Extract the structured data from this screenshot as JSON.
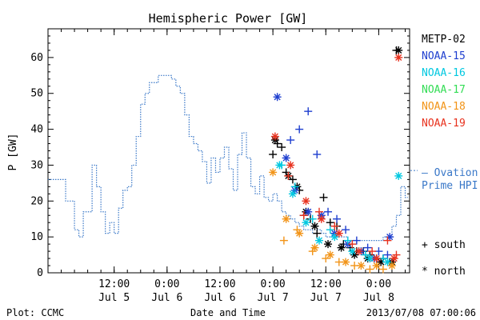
{
  "chart_data": {
    "type": "scatter",
    "title": "Hemispheric Power [GW]",
    "ylabel": "P [GW]",
    "xlabel": "Date and Time",
    "ylim": [
      0,
      68
    ],
    "yticks": [
      0,
      10,
      20,
      30,
      40,
      50,
      60
    ],
    "xlim": [
      "2013-07-04T21:00",
      "2013-07-08T07:00"
    ],
    "xticks": [
      {
        "time": "2013-07-05T12:00",
        "label": "12:00",
        "date": "Jul 5"
      },
      {
        "time": "2013-07-06T00:00",
        "label": "0:00",
        "date": "Jul 6"
      },
      {
        "time": "2013-07-06T12:00",
        "label": "12:00",
        "date": "Jul 6"
      },
      {
        "time": "2013-07-07T00:00",
        "label": "0:00",
        "date": "Jul 7"
      },
      {
        "time": "2013-07-07T12:00",
        "label": "12:00",
        "date": "Jul 7"
      },
      {
        "time": "2013-07-08T00:00",
        "label": "0:00",
        "date": "Jul 8"
      }
    ],
    "ovation": {
      "name": "— Ovation Prime HPI",
      "color": "#3a78c8",
      "x": [
        "2013-07-04T21:00",
        "2013-07-05T01:00",
        "2013-07-05T03:00",
        "2013-07-05T04:00",
        "2013-07-05T05:00",
        "2013-07-05T07:00",
        "2013-07-05T08:00",
        "2013-07-05T09:00",
        "2013-07-05T10:00",
        "2013-07-05T11:00",
        "2013-07-05T12:00",
        "2013-07-05T13:00",
        "2013-07-05T14:00",
        "2013-07-05T15:00",
        "2013-07-05T16:00",
        "2013-07-05T17:00",
        "2013-07-05T18:00",
        "2013-07-05T19:00",
        "2013-07-05T20:00",
        "2013-07-05T21:00",
        "2013-07-05T22:00",
        "2013-07-05T23:00",
        "2013-07-06T00:00",
        "2013-07-06T01:00",
        "2013-07-06T02:00",
        "2013-07-06T03:00",
        "2013-07-06T04:00",
        "2013-07-06T05:00",
        "2013-07-06T06:00",
        "2013-07-06T07:00",
        "2013-07-06T08:00",
        "2013-07-06T09:00",
        "2013-07-06T10:00",
        "2013-07-06T11:00",
        "2013-07-06T12:00",
        "2013-07-06T13:00",
        "2013-07-06T14:00",
        "2013-07-06T15:00",
        "2013-07-06T16:00",
        "2013-07-06T17:00",
        "2013-07-06T18:00",
        "2013-07-06T19:00",
        "2013-07-06T20:00",
        "2013-07-06T21:00",
        "2013-07-06T22:00",
        "2013-07-06T23:00",
        "2013-07-07T00:00",
        "2013-07-07T01:00",
        "2013-07-07T02:00",
        "2013-07-07T03:00",
        "2013-07-07T04:00",
        "2013-07-07T05:00",
        "2013-07-07T06:00",
        "2013-07-07T07:00",
        "2013-07-07T08:00",
        "2013-07-07T09:00",
        "2013-07-07T10:00",
        "2013-07-07T11:00",
        "2013-07-07T12:00",
        "2013-07-07T13:00",
        "2013-07-07T14:00",
        "2013-07-07T15:00",
        "2013-07-07T16:00",
        "2013-07-07T17:00",
        "2013-07-07T18:00",
        "2013-07-07T19:00",
        "2013-07-07T20:00",
        "2013-07-07T21:00",
        "2013-07-07T22:00",
        "2013-07-07T23:00",
        "2013-07-08T00:00",
        "2013-07-08T01:00",
        "2013-07-08T02:00",
        "2013-07-08T03:00",
        "2013-07-08T04:00",
        "2013-07-08T05:00",
        "2013-07-08T06:00"
      ],
      "values": [
        26,
        20,
        12,
        10,
        17,
        30,
        24,
        17,
        11,
        14,
        11,
        18,
        23,
        24,
        30,
        38,
        47,
        50,
        53,
        53,
        55,
        55,
        55,
        54,
        52,
        50,
        44,
        38,
        36,
        34,
        31,
        25,
        32,
        28,
        32,
        35,
        29,
        23,
        33,
        39,
        32,
        24,
        22,
        27,
        21,
        20,
        22,
        20,
        17,
        16,
        15,
        14,
        13,
        12,
        12,
        11,
        12,
        11,
        10,
        10,
        10,
        10,
        10,
        9,
        8,
        9,
        9,
        9,
        9,
        9,
        9,
        10,
        10,
        13,
        16,
        24,
        21
      ]
    },
    "series": [
      {
        "name": "METP-02",
        "color": "#000000",
        "south": {
          "x": [
            "2013-07-07T00:00",
            "2013-07-07T01:00",
            "2013-07-07T02:00",
            "2013-07-07T03:00",
            "2013-07-07T04:30",
            "2013-07-07T06:00",
            "2013-07-07T07:00",
            "2013-07-07T08:30",
            "2013-07-07T10:00",
            "2013-07-07T11:30",
            "2013-07-07T13:00",
            "2013-07-07T14:30",
            "2013-07-07T16:00",
            "2013-07-07T17:30",
            "2013-07-07T19:00",
            "2013-07-07T20:30",
            "2013-07-07T22:00",
            "2013-07-07T23:30",
            "2013-07-08T01:00",
            "2013-07-08T02:30",
            "2013-07-08T04:00"
          ],
          "values": [
            33,
            36,
            35,
            28,
            26,
            23,
            16,
            15,
            11,
            21,
            14,
            13,
            8,
            7,
            6,
            6,
            5,
            4,
            4,
            3,
            62
          ]
        },
        "north": {
          "x": [
            "2013-07-07T00:30",
            "2013-07-07T03:30",
            "2013-07-07T05:30",
            "2013-07-07T07:30",
            "2013-07-07T09:30",
            "2013-07-07T12:30",
            "2013-07-07T15:30",
            "2013-07-07T18:30",
            "2013-07-07T21:30",
            "2013-07-08T00:30",
            "2013-07-08T03:00",
            "2013-07-08T04:30"
          ],
          "values": [
            37,
            27,
            24,
            17,
            13,
            8,
            7,
            5,
            4,
            3,
            3,
            62
          ]
        }
      },
      {
        "name": "NOAA-15",
        "color": "#1f3fcf",
        "south": {
          "x": [
            "2013-07-07T04:00",
            "2013-07-07T06:00",
            "2013-07-07T08:00",
            "2013-07-07T10:00",
            "2013-07-07T12:30",
            "2013-07-07T14:30",
            "2013-07-07T16:30",
            "2013-07-07T19:00",
            "2013-07-07T21:30",
            "2013-07-08T00:00",
            "2013-07-08T02:00"
          ],
          "values": [
            37,
            40,
            45,
            33,
            17,
            15,
            12,
            9,
            7,
            6,
            5
          ]
        },
        "north": {
          "x": [
            "2013-07-07T01:00",
            "2013-07-07T03:00",
            "2013-07-07T05:00",
            "2013-07-07T08:00",
            "2013-07-07T11:00",
            "2013-07-07T14:00",
            "2013-07-07T17:00",
            "2013-07-07T20:00",
            "2013-07-07T23:00",
            "2013-07-08T02:30"
          ],
          "values": [
            49,
            32,
            23,
            17,
            16,
            11,
            8,
            6,
            4,
            10
          ]
        }
      },
      {
        "name": "NOAA-16",
        "color": "#00c8e0",
        "south": {
          "x": [
            "2013-07-07T02:00",
            "2013-07-07T05:00",
            "2013-07-07T09:00",
            "2013-07-07T13:00",
            "2013-07-07T17:00",
            "2013-07-07T21:00",
            "2013-07-08T01:00"
          ],
          "values": [
            30,
            24,
            15,
            12,
            9,
            5,
            4
          ]
        },
        "north": {
          "x": [
            "2013-07-07T01:30",
            "2013-07-07T04:30",
            "2013-07-07T07:30",
            "2013-07-07T10:30",
            "2013-07-07T14:00",
            "2013-07-07T18:00",
            "2013-07-07T22:00",
            "2013-07-08T02:00",
            "2013-07-08T04:30"
          ],
          "values": [
            30,
            22,
            14,
            9,
            10,
            6,
            4,
            3,
            27
          ]
        }
      },
      {
        "name": "NOAA-17",
        "color": "#33dd55",
        "south": {
          "x": [],
          "values": []
        },
        "north": {
          "x": [],
          "values": []
        }
      },
      {
        "name": "NOAA-18",
        "color": "#f29418",
        "south": {
          "x": [
            "2013-07-07T02:30",
            "2013-07-07T05:30",
            "2013-07-07T09:00",
            "2013-07-07T12:00",
            "2013-07-07T15:00",
            "2013-07-07T18:30",
            "2013-07-07T22:00",
            "2013-07-08T01:00"
          ],
          "values": [
            9,
            12,
            6,
            4,
            3,
            2,
            1,
            1
          ]
        },
        "north": {
          "x": [
            "2013-07-07T00:00",
            "2013-07-07T03:00",
            "2013-07-07T06:00",
            "2013-07-07T09:30",
            "2013-07-07T13:00",
            "2013-07-07T16:30",
            "2013-07-07T20:00",
            "2013-07-07T23:30",
            "2013-07-08T03:00"
          ],
          "values": [
            28,
            15,
            11,
            7,
            5,
            3,
            2,
            2,
            2
          ]
        }
      },
      {
        "name": "NOAA-19",
        "color": "#e8321e",
        "south": {
          "x": [
            "2013-07-07T03:30",
            "2013-07-07T07:00",
            "2013-07-07T10:30",
            "2013-07-07T14:00",
            "2013-07-07T18:00",
            "2013-07-07T22:30",
            "2013-07-08T02:00",
            "2013-07-08T04:00"
          ],
          "values": [
            27,
            16,
            17,
            13,
            8,
            6,
            9,
            5
          ]
        },
        "north": {
          "x": [
            "2013-07-07T00:30",
            "2013-07-07T04:00",
            "2013-07-07T07:30",
            "2013-07-07T11:00",
            "2013-07-07T15:00",
            "2013-07-07T19:30",
            "2013-07-07T23:30",
            "2013-07-08T03:30",
            "2013-07-08T04:30"
          ],
          "values": [
            38,
            30,
            20,
            15,
            11,
            6,
            4,
            4,
            60
          ]
        }
      }
    ],
    "marker_legend": {
      "south": "+ south",
      "north": "* north"
    }
  },
  "footer": {
    "credit": "Plot: CCMC",
    "timestamp": "2013/07/08 07:00:06"
  }
}
